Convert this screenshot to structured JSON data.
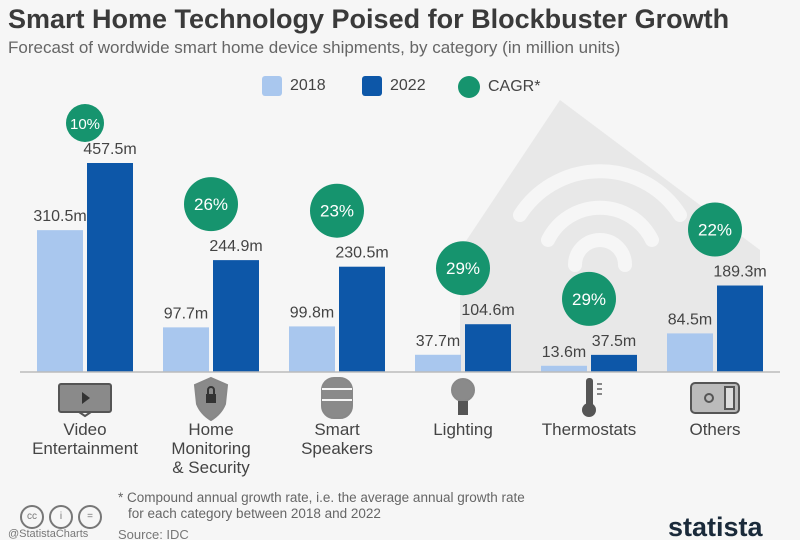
{
  "chart_data": {
    "type": "bar",
    "title": "Smart Home Technology Poised for Blockbuster Growth",
    "subtitle": "Forecast of wordwide smart home device shipments, by category (in million units)",
    "categories": [
      "Video Entertainment",
      "Home Monitoring & Security",
      "Smart Speakers",
      "Lighting",
      "Thermostats",
      "Others"
    ],
    "category_lines": [
      [
        "Video",
        "Entertainment"
      ],
      [
        "Home",
        "Monitoring",
        "& Security"
      ],
      [
        "Smart",
        "Speakers"
      ],
      [
        "Lighting"
      ],
      [
        "Thermostats"
      ],
      [
        "Others"
      ]
    ],
    "icons": [
      "tv-icon",
      "shield-lock-icon",
      "smart-speaker-icon",
      "lightbulb-icon",
      "thermometer-icon",
      "smart-switch-icon"
    ],
    "series": [
      {
        "name": "2018",
        "values": [
          310.5,
          97.7,
          99.8,
          37.7,
          13.6,
          84.5
        ],
        "labels": [
          "310.5m",
          "97.7m",
          "99.8m",
          "37.7m",
          "13.6m",
          "84.5m"
        ],
        "color": "#a9c7ee"
      },
      {
        "name": "2022",
        "values": [
          457.5,
          244.9,
          230.5,
          104.6,
          37.5,
          189.3
        ],
        "labels": [
          "457.5m",
          "244.9m",
          "230.5m",
          "104.6m",
          "37.5m",
          "189.3m"
        ],
        "color": "#0d57a8"
      }
    ],
    "cagr": {
      "name": "CAGR*",
      "values": [
        "10%",
        "26%",
        "23%",
        "29%",
        "29%",
        "22%"
      ],
      "color": "#16946e"
    },
    "ylim": [
      0,
      460
    ],
    "grid": false,
    "legend": "top-center"
  },
  "footer": {
    "note_line1": "* Compound annual growth rate, i.e. the average annual growth rate",
    "note_line2": "for each category between 2018 and 2022",
    "source": "Source: IDC",
    "handle": "@StatistaCharts",
    "logo": "statista"
  }
}
